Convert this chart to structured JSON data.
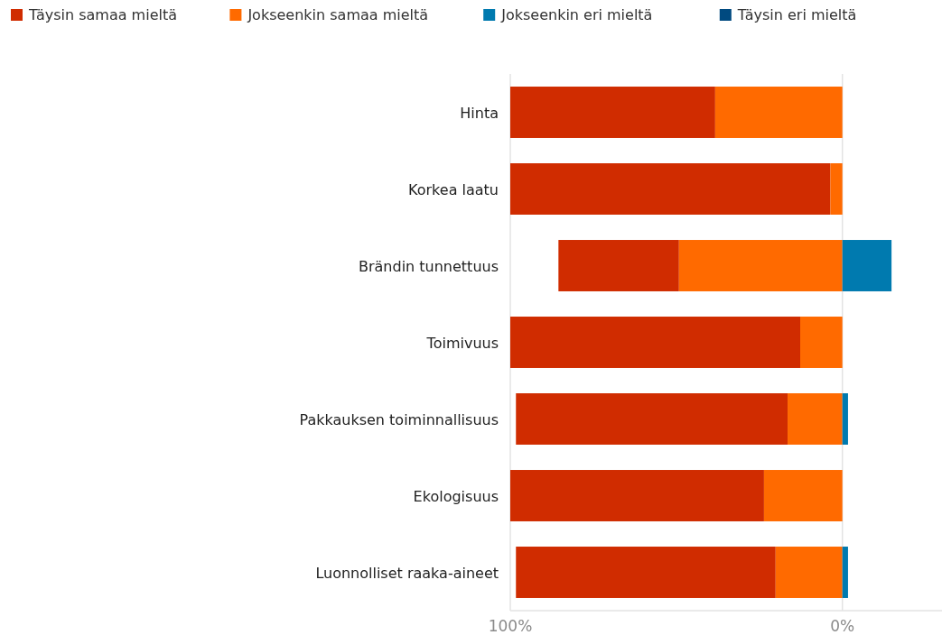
{
  "chart_data": {
    "type": "bar",
    "orientation": "horizontal",
    "categories": [
      "Hinta",
      "Korkea laatu",
      "Brändin tunnettuus",
      "Toimivuus",
      "Pakkauksen toiminnallisuus",
      "Ekologisuus",
      "Luonnolliset raaka-aineet"
    ],
    "series": [
      {
        "name": "Täysin samaa mieltä",
        "color": "#d02c00",
        "values": [
          61.7,
          96.4,
          36.3,
          87.3,
          81.8,
          76.4,
          78.2
        ],
        "base": [
          38.3,
          3.6,
          49.2,
          12.7,
          16.5,
          23.6,
          20.1
        ]
      },
      {
        "name": "Jokseenkin samaa mieltä",
        "color": "#ff6a00",
        "values": [
          38.3,
          3.6,
          49.2,
          12.7,
          16.5,
          23.6,
          20.1
        ],
        "base": [
          0,
          0,
          0,
          0,
          0,
          0,
          0
        ]
      },
      {
        "name": "Jokseenkin eri mieltä",
        "color": "#007aaf",
        "values": [
          0,
          0,
          -14.8,
          0,
          -1.7,
          0,
          -1.7
        ]
      },
      {
        "name": "Täysin eri mieltä",
        "color": "#004a80",
        "values": [
          0,
          0,
          0,
          0,
          0,
          0,
          0
        ]
      }
    ],
    "xlim": [
      100,
      -30
    ],
    "xticks": [
      {
        "value": 100,
        "label": "100%"
      },
      {
        "value": 0,
        "label": "0%"
      }
    ],
    "grid": "x",
    "legend": "top left"
  }
}
